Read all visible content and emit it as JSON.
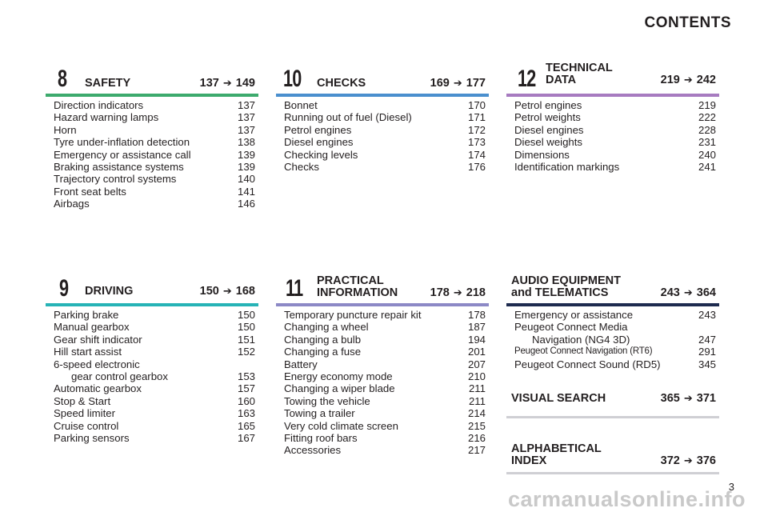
{
  "page_title": "CONTENTS",
  "page_number": "3",
  "watermark": "carmanualsonline.info",
  "arrow_icon": "➔",
  "sections": {
    "s8": {
      "number": "8",
      "title": "SAFETY",
      "range_from": "137",
      "range_to": "149",
      "color": "#3daa6d",
      "entries": [
        {
          "label": "Direction indicators",
          "page": "137"
        },
        {
          "label": "Hazard warning lamps",
          "page": "137"
        },
        {
          "label": "Horn",
          "page": "137"
        },
        {
          "label": "Tyre under-inflation detection",
          "page": "138"
        },
        {
          "label": "Emergency or assistance call",
          "page": "139"
        },
        {
          "label": "Braking assistance systems",
          "page": "139"
        },
        {
          "label": "Trajectory control systems",
          "page": "140"
        },
        {
          "label": "Front seat belts",
          "page": "141"
        },
        {
          "label": "Airbags",
          "page": "146"
        }
      ]
    },
    "s10": {
      "number": "10",
      "title": "CHECKS",
      "range_from": "169",
      "range_to": "177",
      "color": "#4a8fce",
      "entries": [
        {
          "label": "Bonnet",
          "page": "170"
        },
        {
          "label": "Running out of fuel (Diesel)",
          "page": "171"
        },
        {
          "label": "Petrol engines",
          "page": "172"
        },
        {
          "label": "Diesel engines",
          "page": "173"
        },
        {
          "label": "Checking levels",
          "page": "174"
        },
        {
          "label": "Checks",
          "page": "176"
        }
      ]
    },
    "s12": {
      "number": "12",
      "title_line1": "TECHNICAL",
      "title_line2": "DATA",
      "range_from": "219",
      "range_to": "242",
      "color": "#a77bc0",
      "entries": [
        {
          "label": "Petrol engines",
          "page": "219"
        },
        {
          "label": "Petrol weights",
          "page": "222"
        },
        {
          "label": "Diesel engines",
          "page": "228"
        },
        {
          "label": "Diesel weights",
          "page": "231"
        },
        {
          "label": "Dimensions",
          "page": "240"
        },
        {
          "label": "Identification markings",
          "page": "241"
        }
      ]
    },
    "s9": {
      "number": "9",
      "title": "DRIVING",
      "range_from": "150",
      "range_to": "168",
      "color": "#27b3b6",
      "entries": [
        {
          "label": "Parking brake",
          "page": "150"
        },
        {
          "label": "Manual gearbox",
          "page": "150"
        },
        {
          "label": "Gear shift indicator",
          "page": "151"
        },
        {
          "label": "Hill start assist",
          "page": "152"
        },
        {
          "label": "6-speed electronic",
          "page": ""
        },
        {
          "label": "gear control gearbox",
          "page": "153",
          "indent": true
        },
        {
          "label": "Automatic gearbox",
          "page": "157"
        },
        {
          "label": "Stop & Start",
          "page": "160"
        },
        {
          "label": "Speed limiter",
          "page": "163"
        },
        {
          "label": "Cruise control",
          "page": "165"
        },
        {
          "label": "Parking sensors",
          "page": "167"
        }
      ]
    },
    "s11": {
      "number": "11",
      "title_line1": "PRACTICAL",
      "title_line2": "INFORMATION",
      "range_from": "178",
      "range_to": "218",
      "color": "#8c89c6",
      "entries": [
        {
          "label": "Temporary puncture repair kit",
          "page": "178"
        },
        {
          "label": "Changing a wheel",
          "page": "187"
        },
        {
          "label": "Changing a bulb",
          "page": "194"
        },
        {
          "label": "Changing a fuse",
          "page": "201"
        },
        {
          "label": "Battery",
          "page": "207"
        },
        {
          "label": "Energy economy mode",
          "page": "210"
        },
        {
          "label": "Changing a wiper blade",
          "page": "211"
        },
        {
          "label": "Towing the vehicle",
          "page": "211"
        },
        {
          "label": "Towing a trailer",
          "page": "214"
        },
        {
          "label": "Very cold climate screen",
          "page": "215"
        },
        {
          "label": "Fitting roof bars",
          "page": "216"
        },
        {
          "label": "Accessories",
          "page": "217"
        }
      ]
    },
    "audio": {
      "title_line1": "AUDIO EQUIPMENT",
      "title_line2": "and TELEMATICS",
      "range_from": "243",
      "range_to": "364",
      "color": "#1e2b4f",
      "entries": [
        {
          "label": "Emergency or assistance",
          "page": "243"
        },
        {
          "label": "Peugeot Connect Media",
          "page": ""
        },
        {
          "label": "Navigation (NG4 3D)",
          "page": "247",
          "indent": true
        },
        {
          "label": "Peugeot Connect Navigation (RT6)",
          "page": "291",
          "small": true
        },
        {
          "label": "Peugeot Connect Sound (RD5)",
          "page": "345"
        }
      ]
    },
    "visual": {
      "title": "VISUAL SEARCH",
      "range_from": "365",
      "range_to": "371"
    },
    "index": {
      "title_line1": "ALPHABETICAL",
      "title_line2": "INDEX",
      "range_from": "372",
      "range_to": "376"
    }
  }
}
